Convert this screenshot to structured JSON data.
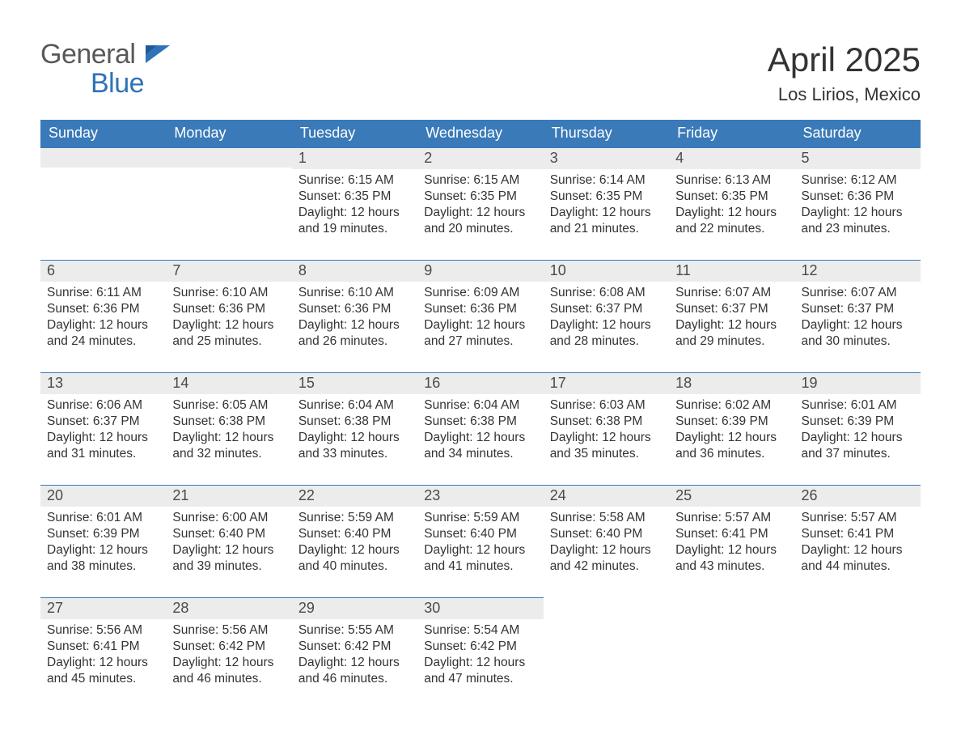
{
  "logo": {
    "line1": "General",
    "line2": "Blue"
  },
  "title": "April 2025",
  "subtitle": "Los Lirios, Mexico",
  "colors": {
    "header_bg": "#3a7ab8",
    "header_text": "#ffffff",
    "daynum_bg": "#ececec",
    "daynum_text": "#4a4a4a",
    "body_text": "#333333",
    "rule": "#3a7ab8",
    "logo_gray": "#595959",
    "logo_blue": "#2f72b8"
  },
  "calendar": {
    "weekdays": [
      "Sunday",
      "Monday",
      "Tuesday",
      "Wednesday",
      "Thursday",
      "Friday",
      "Saturday"
    ],
    "weeks": [
      [
        null,
        null,
        {
          "day": "1",
          "sunrise": "Sunrise: 6:15 AM",
          "sunset": "Sunset: 6:35 PM",
          "daylight": "Daylight: 12 hours and 19 minutes."
        },
        {
          "day": "2",
          "sunrise": "Sunrise: 6:15 AM",
          "sunset": "Sunset: 6:35 PM",
          "daylight": "Daylight: 12 hours and 20 minutes."
        },
        {
          "day": "3",
          "sunrise": "Sunrise: 6:14 AM",
          "sunset": "Sunset: 6:35 PM",
          "daylight": "Daylight: 12 hours and 21 minutes."
        },
        {
          "day": "4",
          "sunrise": "Sunrise: 6:13 AM",
          "sunset": "Sunset: 6:35 PM",
          "daylight": "Daylight: 12 hours and 22 minutes."
        },
        {
          "day": "5",
          "sunrise": "Sunrise: 6:12 AM",
          "sunset": "Sunset: 6:36 PM",
          "daylight": "Daylight: 12 hours and 23 minutes."
        }
      ],
      [
        {
          "day": "6",
          "sunrise": "Sunrise: 6:11 AM",
          "sunset": "Sunset: 6:36 PM",
          "daylight": "Daylight: 12 hours and 24 minutes."
        },
        {
          "day": "7",
          "sunrise": "Sunrise: 6:10 AM",
          "sunset": "Sunset: 6:36 PM",
          "daylight": "Daylight: 12 hours and 25 minutes."
        },
        {
          "day": "8",
          "sunrise": "Sunrise: 6:10 AM",
          "sunset": "Sunset: 6:36 PM",
          "daylight": "Daylight: 12 hours and 26 minutes."
        },
        {
          "day": "9",
          "sunrise": "Sunrise: 6:09 AM",
          "sunset": "Sunset: 6:36 PM",
          "daylight": "Daylight: 12 hours and 27 minutes."
        },
        {
          "day": "10",
          "sunrise": "Sunrise: 6:08 AM",
          "sunset": "Sunset: 6:37 PM",
          "daylight": "Daylight: 12 hours and 28 minutes."
        },
        {
          "day": "11",
          "sunrise": "Sunrise: 6:07 AM",
          "sunset": "Sunset: 6:37 PM",
          "daylight": "Daylight: 12 hours and 29 minutes."
        },
        {
          "day": "12",
          "sunrise": "Sunrise: 6:07 AM",
          "sunset": "Sunset: 6:37 PM",
          "daylight": "Daylight: 12 hours and 30 minutes."
        }
      ],
      [
        {
          "day": "13",
          "sunrise": "Sunrise: 6:06 AM",
          "sunset": "Sunset: 6:37 PM",
          "daylight": "Daylight: 12 hours and 31 minutes."
        },
        {
          "day": "14",
          "sunrise": "Sunrise: 6:05 AM",
          "sunset": "Sunset: 6:38 PM",
          "daylight": "Daylight: 12 hours and 32 minutes."
        },
        {
          "day": "15",
          "sunrise": "Sunrise: 6:04 AM",
          "sunset": "Sunset: 6:38 PM",
          "daylight": "Daylight: 12 hours and 33 minutes."
        },
        {
          "day": "16",
          "sunrise": "Sunrise: 6:04 AM",
          "sunset": "Sunset: 6:38 PM",
          "daylight": "Daylight: 12 hours and 34 minutes."
        },
        {
          "day": "17",
          "sunrise": "Sunrise: 6:03 AM",
          "sunset": "Sunset: 6:38 PM",
          "daylight": "Daylight: 12 hours and 35 minutes."
        },
        {
          "day": "18",
          "sunrise": "Sunrise: 6:02 AM",
          "sunset": "Sunset: 6:39 PM",
          "daylight": "Daylight: 12 hours and 36 minutes."
        },
        {
          "day": "19",
          "sunrise": "Sunrise: 6:01 AM",
          "sunset": "Sunset: 6:39 PM",
          "daylight": "Daylight: 12 hours and 37 minutes."
        }
      ],
      [
        {
          "day": "20",
          "sunrise": "Sunrise: 6:01 AM",
          "sunset": "Sunset: 6:39 PM",
          "daylight": "Daylight: 12 hours and 38 minutes."
        },
        {
          "day": "21",
          "sunrise": "Sunrise: 6:00 AM",
          "sunset": "Sunset: 6:40 PM",
          "daylight": "Daylight: 12 hours and 39 minutes."
        },
        {
          "day": "22",
          "sunrise": "Sunrise: 5:59 AM",
          "sunset": "Sunset: 6:40 PM",
          "daylight": "Daylight: 12 hours and 40 minutes."
        },
        {
          "day": "23",
          "sunrise": "Sunrise: 5:59 AM",
          "sunset": "Sunset: 6:40 PM",
          "daylight": "Daylight: 12 hours and 41 minutes."
        },
        {
          "day": "24",
          "sunrise": "Sunrise: 5:58 AM",
          "sunset": "Sunset: 6:40 PM",
          "daylight": "Daylight: 12 hours and 42 minutes."
        },
        {
          "day": "25",
          "sunrise": "Sunrise: 5:57 AM",
          "sunset": "Sunset: 6:41 PM",
          "daylight": "Daylight: 12 hours and 43 minutes."
        },
        {
          "day": "26",
          "sunrise": "Sunrise: 5:57 AM",
          "sunset": "Sunset: 6:41 PM",
          "daylight": "Daylight: 12 hours and 44 minutes."
        }
      ],
      [
        {
          "day": "27",
          "sunrise": "Sunrise: 5:56 AM",
          "sunset": "Sunset: 6:41 PM",
          "daylight": "Daylight: 12 hours and 45 minutes."
        },
        {
          "day": "28",
          "sunrise": "Sunrise: 5:56 AM",
          "sunset": "Sunset: 6:42 PM",
          "daylight": "Daylight: 12 hours and 46 minutes."
        },
        {
          "day": "29",
          "sunrise": "Sunrise: 5:55 AM",
          "sunset": "Sunset: 6:42 PM",
          "daylight": "Daylight: 12 hours and 46 minutes."
        },
        {
          "day": "30",
          "sunrise": "Sunrise: 5:54 AM",
          "sunset": "Sunset: 6:42 PM",
          "daylight": "Daylight: 12 hours and 47 minutes."
        },
        null,
        null,
        null
      ]
    ]
  }
}
